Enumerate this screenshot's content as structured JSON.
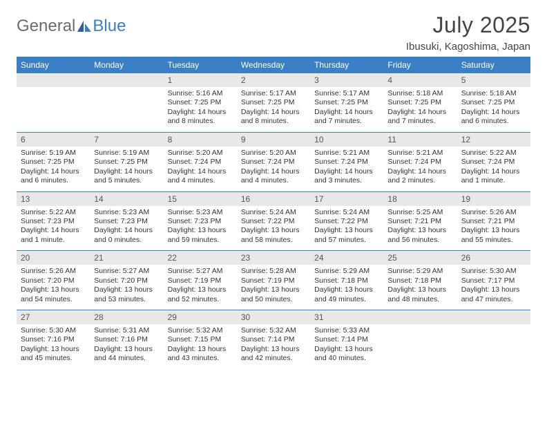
{
  "logo": {
    "text1": "General",
    "text2": "Blue"
  },
  "title": "July 2025",
  "location": "Ibusuki, Kagoshima, Japan",
  "day_names": [
    "Sunday",
    "Monday",
    "Tuesday",
    "Wednesday",
    "Thursday",
    "Friday",
    "Saturday"
  ],
  "colors": {
    "header_bg": "#3b7fc4",
    "header_text": "#ffffff",
    "daynum_bg": "#e8e8e8",
    "rule": "#3b7fc4",
    "body_text": "#333333",
    "title_text": "#444444",
    "logo_gray": "#6b6b6b",
    "logo_blue": "#3b7fc4"
  },
  "weeks": [
    [
      {
        "n": "",
        "sunrise": "",
        "sunset": "",
        "daylight": ""
      },
      {
        "n": "",
        "sunrise": "",
        "sunset": "",
        "daylight": ""
      },
      {
        "n": "1",
        "sunrise": "Sunrise: 5:16 AM",
        "sunset": "Sunset: 7:25 PM",
        "daylight": "Daylight: 14 hours and 8 minutes."
      },
      {
        "n": "2",
        "sunrise": "Sunrise: 5:17 AM",
        "sunset": "Sunset: 7:25 PM",
        "daylight": "Daylight: 14 hours and 8 minutes."
      },
      {
        "n": "3",
        "sunrise": "Sunrise: 5:17 AM",
        "sunset": "Sunset: 7:25 PM",
        "daylight": "Daylight: 14 hours and 7 minutes."
      },
      {
        "n": "4",
        "sunrise": "Sunrise: 5:18 AM",
        "sunset": "Sunset: 7:25 PM",
        "daylight": "Daylight: 14 hours and 7 minutes."
      },
      {
        "n": "5",
        "sunrise": "Sunrise: 5:18 AM",
        "sunset": "Sunset: 7:25 PM",
        "daylight": "Daylight: 14 hours and 6 minutes."
      }
    ],
    [
      {
        "n": "6",
        "sunrise": "Sunrise: 5:19 AM",
        "sunset": "Sunset: 7:25 PM",
        "daylight": "Daylight: 14 hours and 6 minutes."
      },
      {
        "n": "7",
        "sunrise": "Sunrise: 5:19 AM",
        "sunset": "Sunset: 7:25 PM",
        "daylight": "Daylight: 14 hours and 5 minutes."
      },
      {
        "n": "8",
        "sunrise": "Sunrise: 5:20 AM",
        "sunset": "Sunset: 7:24 PM",
        "daylight": "Daylight: 14 hours and 4 minutes."
      },
      {
        "n": "9",
        "sunrise": "Sunrise: 5:20 AM",
        "sunset": "Sunset: 7:24 PM",
        "daylight": "Daylight: 14 hours and 4 minutes."
      },
      {
        "n": "10",
        "sunrise": "Sunrise: 5:21 AM",
        "sunset": "Sunset: 7:24 PM",
        "daylight": "Daylight: 14 hours and 3 minutes."
      },
      {
        "n": "11",
        "sunrise": "Sunrise: 5:21 AM",
        "sunset": "Sunset: 7:24 PM",
        "daylight": "Daylight: 14 hours and 2 minutes."
      },
      {
        "n": "12",
        "sunrise": "Sunrise: 5:22 AM",
        "sunset": "Sunset: 7:24 PM",
        "daylight": "Daylight: 14 hours and 1 minute."
      }
    ],
    [
      {
        "n": "13",
        "sunrise": "Sunrise: 5:22 AM",
        "sunset": "Sunset: 7:23 PM",
        "daylight": "Daylight: 14 hours and 1 minute."
      },
      {
        "n": "14",
        "sunrise": "Sunrise: 5:23 AM",
        "sunset": "Sunset: 7:23 PM",
        "daylight": "Daylight: 14 hours and 0 minutes."
      },
      {
        "n": "15",
        "sunrise": "Sunrise: 5:23 AM",
        "sunset": "Sunset: 7:23 PM",
        "daylight": "Daylight: 13 hours and 59 minutes."
      },
      {
        "n": "16",
        "sunrise": "Sunrise: 5:24 AM",
        "sunset": "Sunset: 7:22 PM",
        "daylight": "Daylight: 13 hours and 58 minutes."
      },
      {
        "n": "17",
        "sunrise": "Sunrise: 5:24 AM",
        "sunset": "Sunset: 7:22 PM",
        "daylight": "Daylight: 13 hours and 57 minutes."
      },
      {
        "n": "18",
        "sunrise": "Sunrise: 5:25 AM",
        "sunset": "Sunset: 7:21 PM",
        "daylight": "Daylight: 13 hours and 56 minutes."
      },
      {
        "n": "19",
        "sunrise": "Sunrise: 5:26 AM",
        "sunset": "Sunset: 7:21 PM",
        "daylight": "Daylight: 13 hours and 55 minutes."
      }
    ],
    [
      {
        "n": "20",
        "sunrise": "Sunrise: 5:26 AM",
        "sunset": "Sunset: 7:20 PM",
        "daylight": "Daylight: 13 hours and 54 minutes."
      },
      {
        "n": "21",
        "sunrise": "Sunrise: 5:27 AM",
        "sunset": "Sunset: 7:20 PM",
        "daylight": "Daylight: 13 hours and 53 minutes."
      },
      {
        "n": "22",
        "sunrise": "Sunrise: 5:27 AM",
        "sunset": "Sunset: 7:19 PM",
        "daylight": "Daylight: 13 hours and 52 minutes."
      },
      {
        "n": "23",
        "sunrise": "Sunrise: 5:28 AM",
        "sunset": "Sunset: 7:19 PM",
        "daylight": "Daylight: 13 hours and 50 minutes."
      },
      {
        "n": "24",
        "sunrise": "Sunrise: 5:29 AM",
        "sunset": "Sunset: 7:18 PM",
        "daylight": "Daylight: 13 hours and 49 minutes."
      },
      {
        "n": "25",
        "sunrise": "Sunrise: 5:29 AM",
        "sunset": "Sunset: 7:18 PM",
        "daylight": "Daylight: 13 hours and 48 minutes."
      },
      {
        "n": "26",
        "sunrise": "Sunrise: 5:30 AM",
        "sunset": "Sunset: 7:17 PM",
        "daylight": "Daylight: 13 hours and 47 minutes."
      }
    ],
    [
      {
        "n": "27",
        "sunrise": "Sunrise: 5:30 AM",
        "sunset": "Sunset: 7:16 PM",
        "daylight": "Daylight: 13 hours and 45 minutes."
      },
      {
        "n": "28",
        "sunrise": "Sunrise: 5:31 AM",
        "sunset": "Sunset: 7:16 PM",
        "daylight": "Daylight: 13 hours and 44 minutes."
      },
      {
        "n": "29",
        "sunrise": "Sunrise: 5:32 AM",
        "sunset": "Sunset: 7:15 PM",
        "daylight": "Daylight: 13 hours and 43 minutes."
      },
      {
        "n": "30",
        "sunrise": "Sunrise: 5:32 AM",
        "sunset": "Sunset: 7:14 PM",
        "daylight": "Daylight: 13 hours and 42 minutes."
      },
      {
        "n": "31",
        "sunrise": "Sunrise: 5:33 AM",
        "sunset": "Sunset: 7:14 PM",
        "daylight": "Daylight: 13 hours and 40 minutes."
      },
      {
        "n": "",
        "sunrise": "",
        "sunset": "",
        "daylight": ""
      },
      {
        "n": "",
        "sunrise": "",
        "sunset": "",
        "daylight": ""
      }
    ]
  ]
}
